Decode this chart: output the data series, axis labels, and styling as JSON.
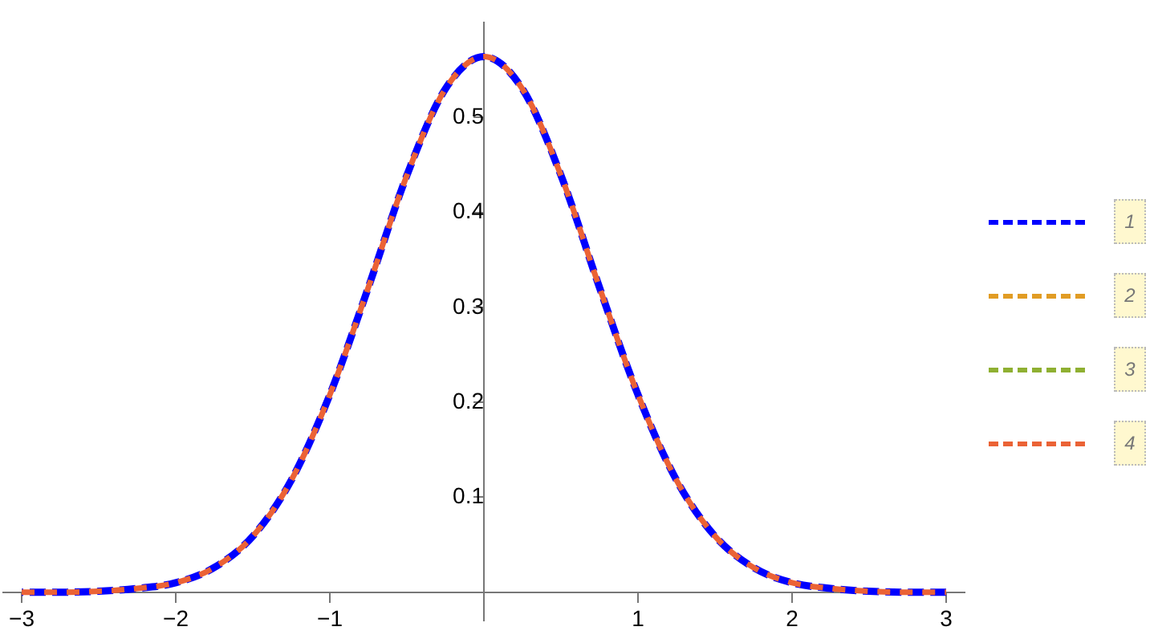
{
  "chart_data": {
    "type": "line",
    "x": [
      -3,
      -2.75,
      -2.5,
      -2.25,
      -2,
      -1.75,
      -1.5,
      -1.25,
      -1,
      -0.75,
      -0.5,
      -0.25,
      0,
      0.25,
      0.5,
      0.75,
      1,
      1.25,
      1.5,
      1.75,
      2,
      2.25,
      2.5,
      2.75,
      3
    ],
    "series": [
      {
        "name": "1",
        "color": "#0000ff",
        "values": [
          0,
          0,
          0.001,
          0.004,
          0.01,
          0.026,
          0.059,
          0.118,
          0.208,
          0.321,
          0.439,
          0.53,
          0.564,
          0.53,
          0.439,
          0.321,
          0.208,
          0.118,
          0.059,
          0.026,
          0.01,
          0.004,
          0.001,
          0,
          0
        ]
      },
      {
        "name": "2",
        "color": "#e19c24",
        "values": [
          null,
          null,
          null,
          null,
          null,
          null,
          null,
          null,
          null,
          null,
          null,
          null,
          null,
          null,
          null,
          null,
          null,
          null,
          null,
          null,
          null,
          null,
          null,
          null,
          null
        ]
      },
      {
        "name": "3",
        "color": "#8fb032",
        "values": [
          null,
          null,
          null,
          null,
          null,
          null,
          null,
          null,
          null,
          null,
          null,
          null,
          null,
          null,
          null,
          null,
          null,
          null,
          null,
          null,
          null,
          null,
          null,
          null,
          null
        ]
      },
      {
        "name": "4",
        "color": "#eb6235",
        "values": [
          0,
          0,
          0.001,
          0.004,
          0.01,
          0.026,
          0.059,
          0.118,
          0.208,
          0.321,
          0.439,
          0.53,
          0.564,
          0.53,
          0.439,
          0.321,
          0.208,
          0.118,
          0.059,
          0.026,
          0.01,
          0.004,
          0.001,
          0,
          0
        ]
      }
    ],
    "xlim": [
      -3.12,
      3.12
    ],
    "ylim": [
      -0.03,
      0.6
    ],
    "xticks": [
      -3,
      -2,
      -1,
      1,
      2,
      3
    ],
    "yticks": [
      0.1,
      0.2,
      0.3,
      0.4,
      0.5
    ],
    "grid": false,
    "legend": "right",
    "marker": "none",
    "line_style": "dashed"
  }
}
